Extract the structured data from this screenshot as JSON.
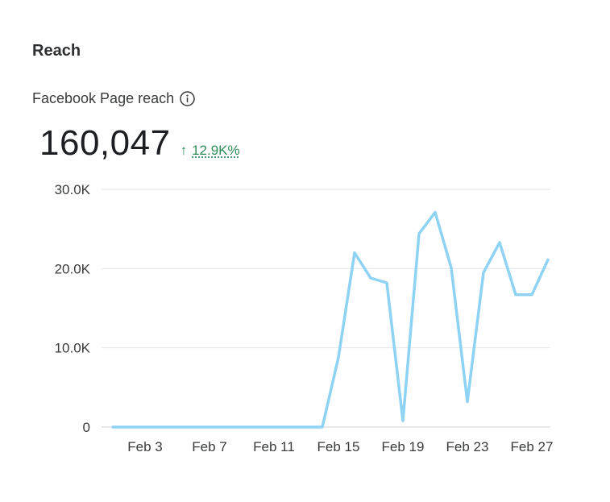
{
  "section": {
    "title": "Reach"
  },
  "metric": {
    "label": "Facebook Page reach",
    "info_icon": "info-circle-icon",
    "value": "160,047",
    "delta_icon": "arrow-up-icon",
    "delta_arrow": "↑",
    "delta": "12.9K%",
    "delta_color": "#2e8b57"
  },
  "chart_data": {
    "type": "line",
    "title": "",
    "xlabel": "",
    "ylabel": "",
    "color": "#8fd3f4",
    "grid": true,
    "ylim": [
      0,
      30000
    ],
    "yticks": [
      0,
      10000,
      20000,
      30000
    ],
    "ytick_labels": [
      "0",
      "10.0K",
      "20.0K",
      "30.0K"
    ],
    "xtick_labels": [
      "Feb 3",
      "Feb 7",
      "Feb 11",
      "Feb 15",
      "Feb 19",
      "Feb 23",
      "Feb 27"
    ],
    "xtick_days": [
      3,
      7,
      11,
      15,
      19,
      23,
      27
    ],
    "x": [
      1,
      2,
      3,
      4,
      5,
      6,
      7,
      8,
      9,
      10,
      11,
      12,
      13,
      14,
      15,
      16,
      17,
      18,
      19,
      20,
      21,
      22,
      23,
      24,
      25,
      26,
      27,
      28
    ],
    "series": [
      {
        "values": [
          0,
          0,
          0,
          0,
          0,
          0,
          0,
          0,
          0,
          0,
          0,
          0,
          0,
          0,
          8800,
          22000,
          18800,
          18200,
          800,
          24400,
          27100,
          20100,
          3200,
          19500,
          23300,
          16700,
          16700,
          21100
        ]
      }
    ]
  }
}
